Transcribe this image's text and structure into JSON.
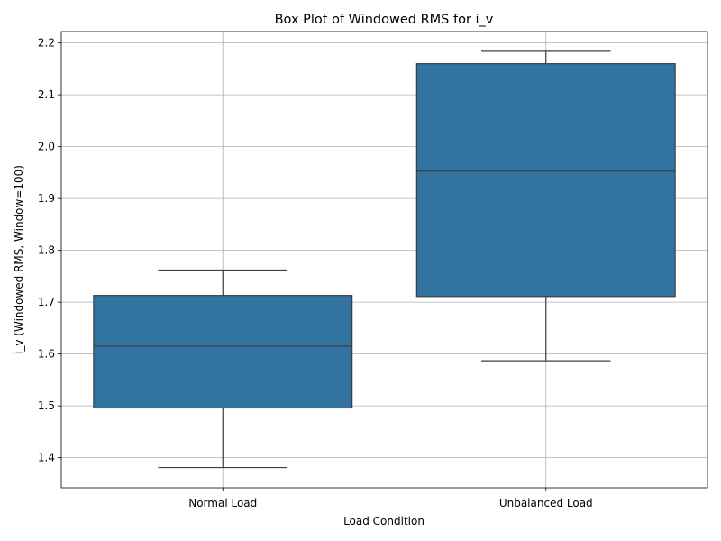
{
  "chart_data": {
    "type": "box",
    "title": "Box Plot of Windowed RMS for i_v",
    "xlabel": "Load Condition",
    "ylabel": "i_v (Windowed RMS, Window=100)",
    "ylim": [
      1.342,
      2.222
    ],
    "yticks": [
      1.4,
      1.5,
      1.6,
      1.7,
      1.8,
      1.9,
      2.0,
      2.1,
      2.2
    ],
    "ytick_labels": [
      "1.4",
      "1.5",
      "1.6",
      "1.7",
      "1.8",
      "1.9",
      "2.0",
      "2.1",
      "2.2"
    ],
    "grid": true,
    "box_color": "#3274a1",
    "line_color": "#3f3f3f",
    "categories": [
      "Normal Load",
      "Unbalanced Load"
    ],
    "boxes": [
      {
        "category": "Normal Load",
        "whisker_low": 1.381,
        "q1": 1.496,
        "median": 1.615,
        "q3": 1.713,
        "whisker_high": 1.762
      },
      {
        "category": "Unbalanced Load",
        "whisker_low": 1.587,
        "q1": 1.711,
        "median": 1.953,
        "q3": 2.16,
        "whisker_high": 2.184
      }
    ]
  }
}
